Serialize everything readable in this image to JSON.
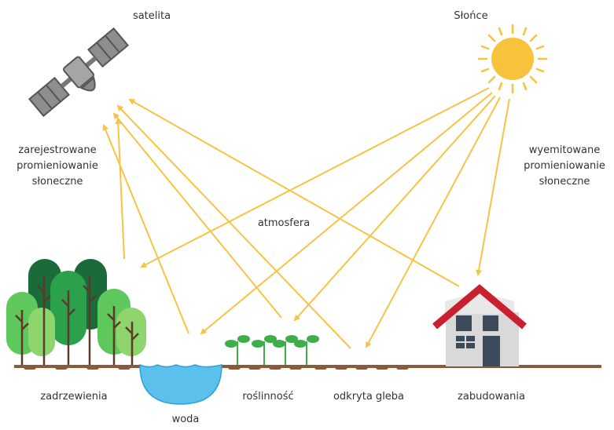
{
  "labels": {
    "satellite": "satelita",
    "sun": "Słońce",
    "recorded": [
      "zarejestrowane",
      "promieniowanie",
      "słoneczne"
    ],
    "emitted": [
      "wyemitowane",
      "promieniowanie",
      "słoneczne"
    ],
    "atmosphere": "atmosfera",
    "trees": "zadrzewienia",
    "water": "woda",
    "vegetation": "roślinność",
    "soil": "odkryta gleba",
    "buildings": "zabudowania"
  }
}
